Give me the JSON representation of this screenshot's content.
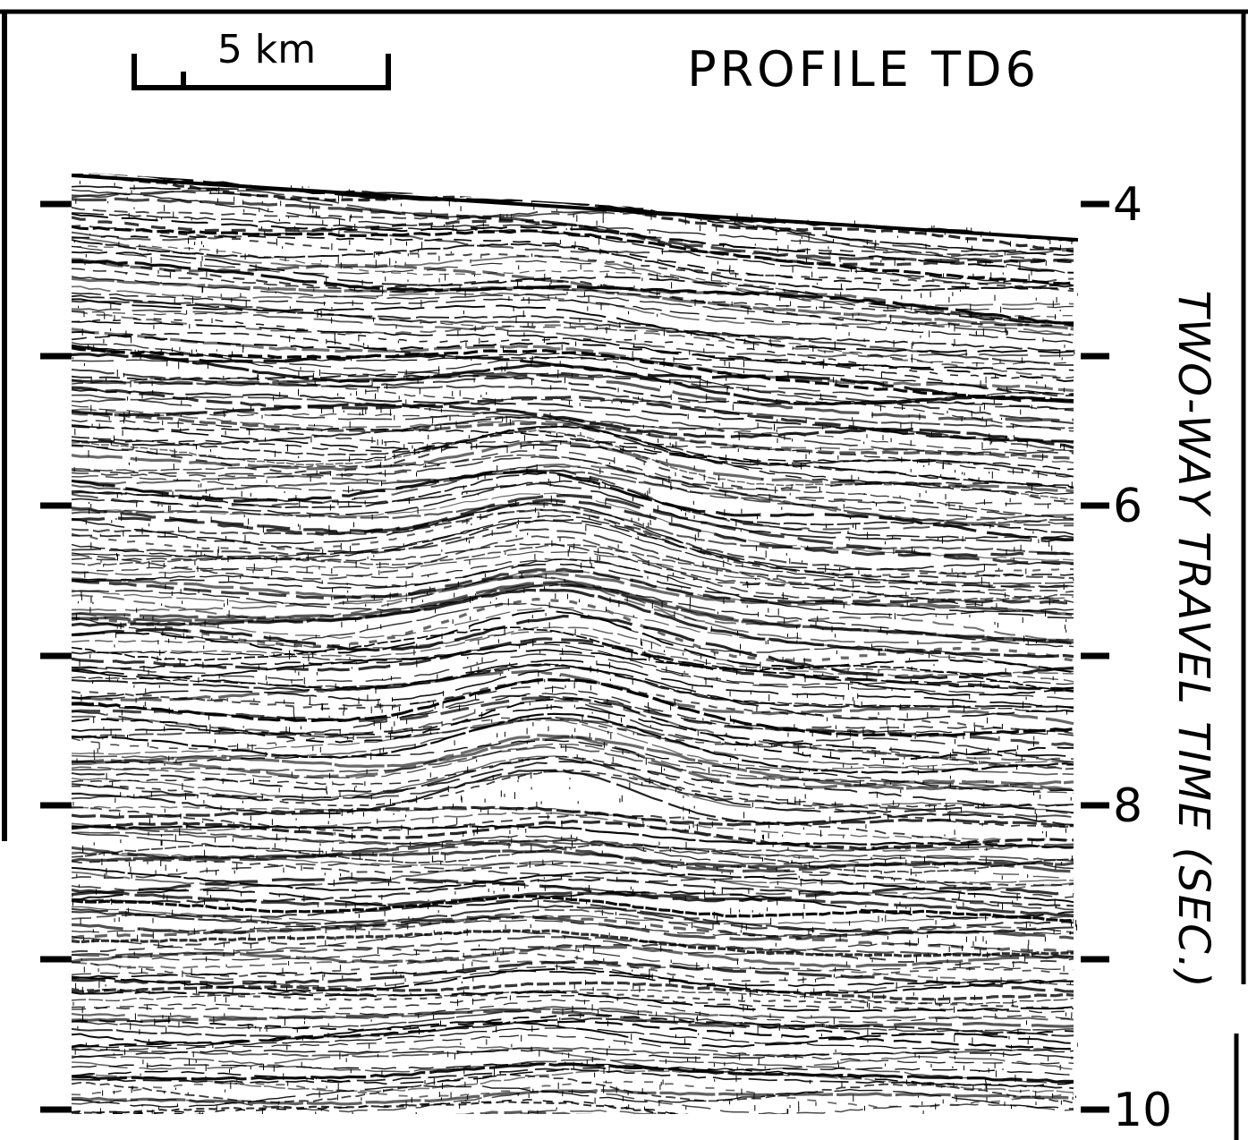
{
  "scale_bar": {
    "label": "5 km"
  },
  "title": "PROFILE TD6",
  "axis": {
    "label": "TWO-WAY TRAVEL TIME (SEC.)",
    "ticks": [
      "4",
      "6",
      "8",
      "10"
    ]
  }
}
